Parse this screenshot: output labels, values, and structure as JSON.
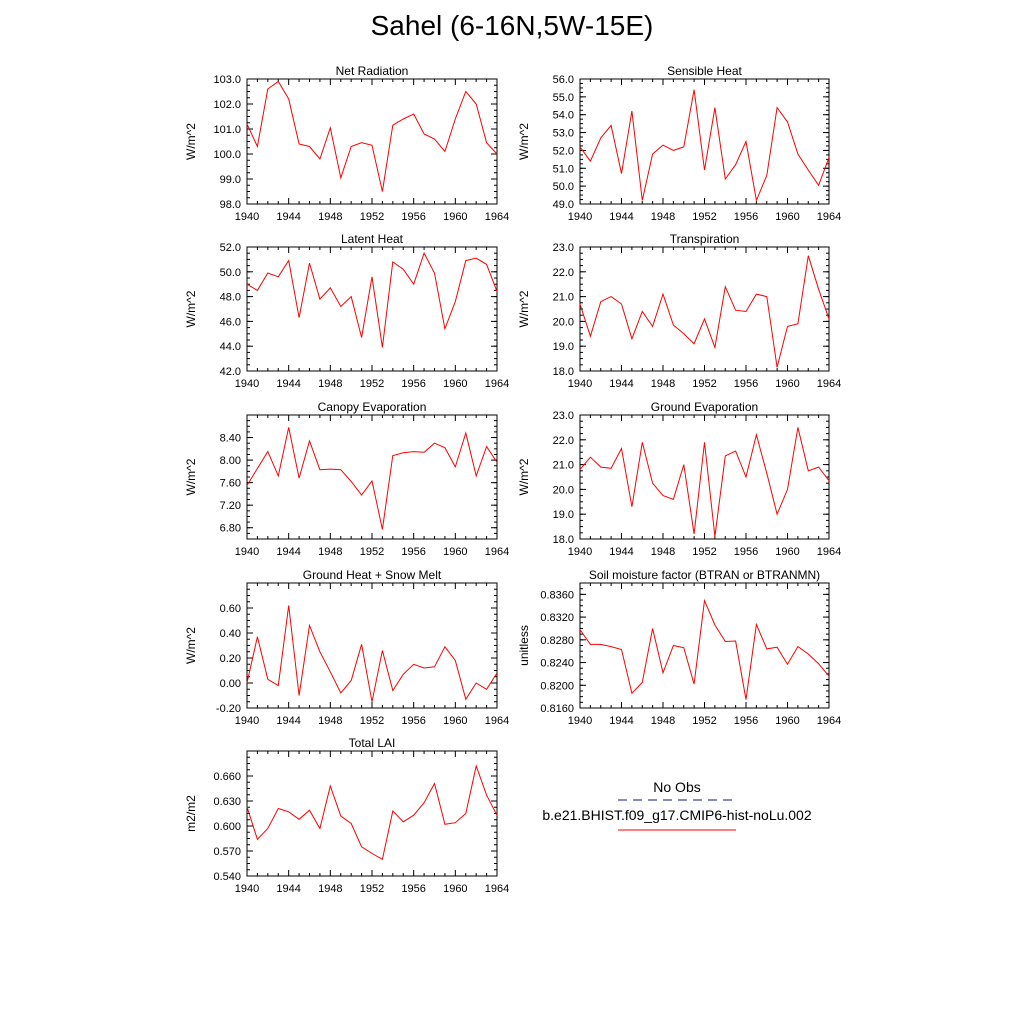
{
  "title": "Sahel (6-16N,5W-15E)",
  "line_color": "#ff0000",
  "x_ticks": [
    "1940",
    "1944",
    "1948",
    "1952",
    "1956",
    "1960",
    "1964"
  ],
  "legend": {
    "obs_label": "No Obs",
    "obs_color": "#4040a0",
    "model_label": "b.e21.BHIST.f09_g17.CMIP6-hist-noLu.002",
    "model_color": "#ff0000"
  },
  "chart_data": [
    {
      "type": "line",
      "title": "Net Radiation",
      "ylabel": "W/m^2",
      "xlim": [
        1940,
        1964
      ],
      "ylim": [
        98.0,
        103.0
      ],
      "yticks": [
        "98.0",
        "99.0",
        "100.0",
        "101.0",
        "102.0",
        "103.0"
      ],
      "x": [
        1940,
        1941,
        1942,
        1943,
        1944,
        1945,
        1946,
        1947,
        1948,
        1949,
        1950,
        1951,
        1952,
        1953,
        1954,
        1955,
        1956,
        1957,
        1958,
        1959,
        1960,
        1961,
        1962,
        1963,
        1964
      ],
      "series": [
        {
          "values": [
            101.2,
            100.3,
            102.6,
            102.9,
            102.2,
            100.4,
            100.3,
            99.8,
            101.05,
            99.05,
            100.3,
            100.45,
            100.35,
            98.5,
            101.15,
            101.4,
            101.6,
            100.8,
            100.6,
            100.1,
            101.4,
            102.5,
            102.0,
            100.45,
            100.0
          ]
        }
      ]
    },
    {
      "type": "line",
      "title": "Sensible Heat",
      "ylabel": "W/m^2",
      "xlim": [
        1940,
        1964
      ],
      "ylim": [
        49.0,
        56.0
      ],
      "yticks": [
        "49.0",
        "50.0",
        "51.0",
        "52.0",
        "53.0",
        "54.0",
        "55.0",
        "56.0"
      ],
      "x": [
        1940,
        1941,
        1942,
        1943,
        1944,
        1945,
        1946,
        1947,
        1948,
        1949,
        1950,
        1951,
        1952,
        1953,
        1954,
        1955,
        1956,
        1957,
        1958,
        1959,
        1960,
        1961,
        1962,
        1963,
        1964
      ],
      "series": [
        {
          "values": [
            52.2,
            51.4,
            52.7,
            53.4,
            50.7,
            54.2,
            49.2,
            51.8,
            52.3,
            52.0,
            52.2,
            55.4,
            50.9,
            54.4,
            50.4,
            51.2,
            52.5,
            49.2,
            50.6,
            54.4,
            53.6,
            51.8,
            50.9,
            50.05,
            51.6
          ]
        }
      ]
    },
    {
      "type": "line",
      "title": "Latent Heat",
      "ylabel": "W/m^2",
      "xlim": [
        1940,
        1964
      ],
      "ylim": [
        42.0,
        52.0
      ],
      "yticks": [
        "42.0",
        "44.0",
        "46.0",
        "48.0",
        "50.0",
        "52.0"
      ],
      "x": [
        1940,
        1941,
        1942,
        1943,
        1944,
        1945,
        1946,
        1947,
        1948,
        1949,
        1950,
        1951,
        1952,
        1953,
        1954,
        1955,
        1956,
        1957,
        1958,
        1959,
        1960,
        1961,
        1962,
        1963,
        1964
      ],
      "series": [
        {
          "values": [
            49.0,
            48.5,
            49.9,
            49.6,
            50.9,
            46.3,
            50.7,
            47.8,
            48.7,
            47.2,
            48.0,
            44.7,
            49.6,
            43.9,
            50.8,
            50.2,
            49.0,
            51.5,
            49.9,
            45.4,
            47.6,
            50.9,
            51.1,
            50.6,
            48.4
          ]
        }
      ]
    },
    {
      "type": "line",
      "title": "Transpiration",
      "ylabel": "W/m^2",
      "xlim": [
        1940,
        1964
      ],
      "ylim": [
        18.0,
        23.0
      ],
      "yticks": [
        "18.0",
        "19.0",
        "20.0",
        "21.0",
        "22.0",
        "23.0"
      ],
      "x": [
        1940,
        1941,
        1942,
        1943,
        1944,
        1945,
        1946,
        1947,
        1948,
        1949,
        1950,
        1951,
        1952,
        1953,
        1954,
        1955,
        1956,
        1957,
        1958,
        1959,
        1960,
        1961,
        1962,
        1963,
        1964
      ],
      "series": [
        {
          "values": [
            20.7,
            19.4,
            20.8,
            21.0,
            20.7,
            19.3,
            20.4,
            19.8,
            21.1,
            19.85,
            19.5,
            19.1,
            20.1,
            18.95,
            21.4,
            20.45,
            20.4,
            21.1,
            21.0,
            18.15,
            19.8,
            19.9,
            22.65,
            21.3,
            20.1
          ]
        }
      ]
    },
    {
      "type": "line",
      "title": "Canopy Evaporation",
      "ylabel": "W/m^2",
      "xlim": [
        1940,
        1964
      ],
      "ylim": [
        6.6,
        8.8
      ],
      "yticks": [
        "6.80",
        "7.20",
        "7.60",
        "8.00",
        "8.40"
      ],
      "x": [
        1940,
        1941,
        1942,
        1943,
        1944,
        1945,
        1946,
        1947,
        1948,
        1949,
        1950,
        1951,
        1952,
        1953,
        1954,
        1955,
        1956,
        1957,
        1958,
        1959,
        1960,
        1961,
        1962,
        1963,
        1964
      ],
      "series": [
        {
          "values": [
            7.55,
            7.85,
            8.15,
            7.72,
            8.58,
            7.68,
            8.34,
            7.83,
            7.84,
            7.83,
            7.62,
            7.38,
            7.63,
            6.77,
            8.08,
            8.13,
            8.15,
            8.14,
            8.3,
            8.22,
            7.88,
            8.48,
            7.72,
            8.24,
            7.96
          ]
        }
      ]
    },
    {
      "type": "line",
      "title": "Ground Evaporation",
      "ylabel": "W/m^2",
      "xlim": [
        1940,
        1964
      ],
      "ylim": [
        18.0,
        23.0
      ],
      "yticks": [
        "18.0",
        "19.0",
        "20.0",
        "21.0",
        "22.0",
        "23.0"
      ],
      "x": [
        1940,
        1941,
        1942,
        1943,
        1944,
        1945,
        1946,
        1947,
        1948,
        1949,
        1950,
        1951,
        1952,
        1953,
        1954,
        1955,
        1956,
        1957,
        1958,
        1959,
        1960,
        1961,
        1962,
        1963,
        1964
      ],
      "series": [
        {
          "values": [
            20.8,
            21.3,
            20.9,
            20.85,
            21.65,
            19.3,
            21.9,
            20.25,
            19.75,
            19.6,
            21.0,
            18.2,
            21.9,
            18.1,
            21.35,
            21.55,
            20.5,
            22.2,
            20.65,
            19.0,
            20.0,
            22.5,
            20.75,
            20.9,
            20.35
          ]
        }
      ]
    },
    {
      "type": "line",
      "title": "Ground Heat + Snow Melt",
      "ylabel": "W/m^2",
      "xlim": [
        1940,
        1964
      ],
      "ylim": [
        -0.2,
        0.8
      ],
      "yticks": [
        "-0.20",
        "0.00",
        "0.20",
        "0.40",
        "0.60"
      ],
      "x": [
        1940,
        1941,
        1942,
        1943,
        1944,
        1945,
        1946,
        1947,
        1948,
        1949,
        1950,
        1951,
        1952,
        1953,
        1954,
        1955,
        1956,
        1957,
        1958,
        1959,
        1960,
        1961,
        1962,
        1963,
        1964
      ],
      "series": [
        {
          "values": [
            0.0,
            0.37,
            0.03,
            -0.02,
            0.62,
            -0.1,
            0.46,
            0.25,
            0.09,
            -0.08,
            0.02,
            0.31,
            -0.15,
            0.26,
            -0.06,
            0.07,
            0.15,
            0.12,
            0.13,
            0.29,
            0.18,
            -0.13,
            0.0,
            -0.05,
            0.08
          ]
        }
      ]
    },
    {
      "type": "line",
      "title": "Soil moisture factor (BTRAN or BTRANMN)",
      "ylabel": "unitless",
      "xlim": [
        1940,
        1964
      ],
      "ylim": [
        0.816,
        0.838
      ],
      "yticks": [
        "0.8160",
        "0.8200",
        "0.8240",
        "0.8280",
        "0.8320",
        "0.8360"
      ],
      "x": [
        1940,
        1941,
        1942,
        1943,
        1944,
        1945,
        1946,
        1947,
        1948,
        1949,
        1950,
        1951,
        1952,
        1953,
        1954,
        1955,
        1956,
        1957,
        1958,
        1959,
        1960,
        1961,
        1962,
        1963,
        1964
      ],
      "series": [
        {
          "values": [
            0.8298,
            0.8272,
            0.8272,
            0.8268,
            0.8263,
            0.8186,
            0.8205,
            0.83,
            0.8222,
            0.827,
            0.8266,
            0.8202,
            0.8349,
            0.8306,
            0.8277,
            0.8278,
            0.8175,
            0.8307,
            0.8264,
            0.8267,
            0.8237,
            0.8268,
            0.8255,
            0.8238,
            0.8216
          ]
        }
      ]
    },
    {
      "type": "line",
      "title": "Total LAI",
      "ylabel": "m2/m2",
      "xlim": [
        1940,
        1964
      ],
      "ylim": [
        0.54,
        0.69
      ],
      "yticks": [
        "0.540",
        "0.570",
        "0.600",
        "0.630",
        "0.660"
      ],
      "x": [
        1940,
        1941,
        1942,
        1943,
        1944,
        1945,
        1946,
        1947,
        1948,
        1949,
        1950,
        1951,
        1952,
        1953,
        1954,
        1955,
        1956,
        1957,
        1958,
        1959,
        1960,
        1961,
        1962,
        1963,
        1964
      ],
      "series": [
        {
          "values": [
            0.623,
            0.584,
            0.597,
            0.621,
            0.617,
            0.608,
            0.619,
            0.597,
            0.648,
            0.612,
            0.603,
            0.575,
            0.567,
            0.56,
            0.618,
            0.605,
            0.613,
            0.628,
            0.651,
            0.602,
            0.604,
            0.615,
            0.672,
            0.637,
            0.613
          ]
        }
      ]
    }
  ]
}
